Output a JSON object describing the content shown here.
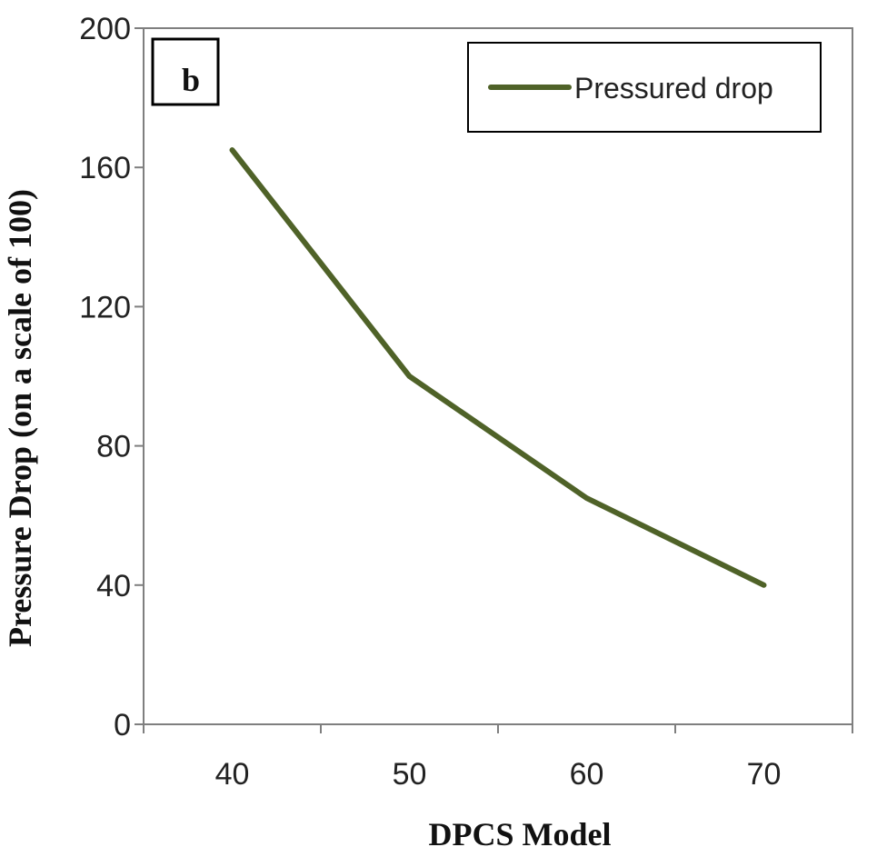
{
  "chart_data": {
    "type": "line",
    "panel_label": "b",
    "title": "",
    "xlabel": "DPCS Model",
    "ylabel": "Pressure Drop (on a scale of 100)",
    "categories": [
      "40",
      "50",
      "60",
      "70"
    ],
    "series": [
      {
        "name": "Pressured drop",
        "values": [
          165,
          100,
          65,
          40
        ],
        "color": "#4f6228"
      }
    ],
    "ylim": [
      0,
      200
    ],
    "yticks": [
      0,
      40,
      80,
      120,
      160,
      200
    ],
    "grid": false,
    "legend": "top-right"
  }
}
